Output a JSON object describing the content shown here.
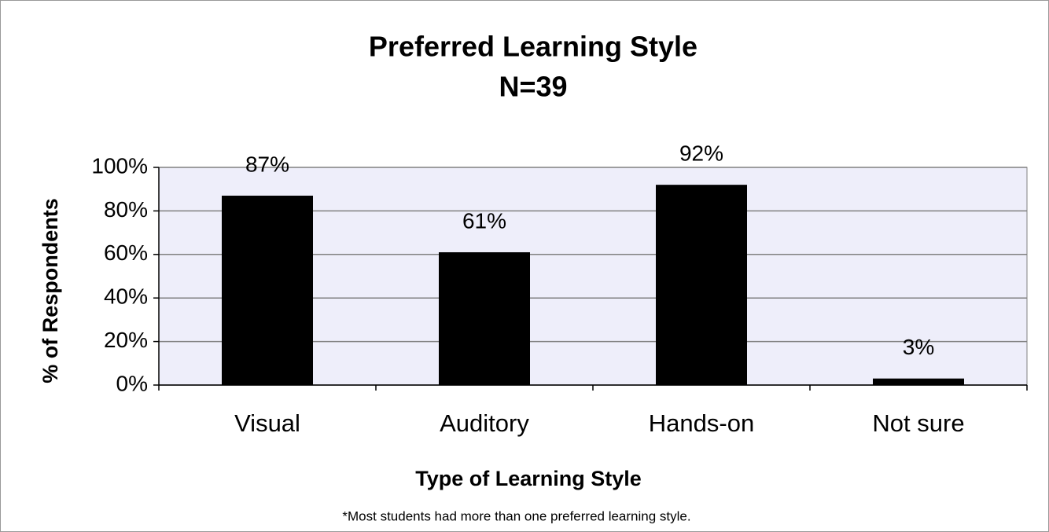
{
  "chart_data": {
    "type": "bar",
    "title": "Preferred Learning Style",
    "subtitle": "N=39",
    "x_label": "Type of Learning Style",
    "y_label": "% of Respondents",
    "annotation": "*Most students had more than one preferred learning style.",
    "categories": [
      "Visual",
      "Auditory",
      "Hands-on",
      "Not sure"
    ],
    "values": [
      87,
      61,
      92,
      3
    ],
    "value_labels": [
      "87%",
      "61%",
      "92%",
      "3%"
    ],
    "color": "#000000",
    "plot_background": "#eeeefa",
    "ylim": [
      0,
      100
    ],
    "yticks": [
      {
        "value": 0,
        "label": "0%"
      },
      {
        "value": 20,
        "label": "20%"
      },
      {
        "value": 40,
        "label": "40%"
      },
      {
        "value": 60,
        "label": "60%"
      },
      {
        "value": 80,
        "label": "80%"
      },
      {
        "value": 100,
        "label": "100%"
      }
    ],
    "grid": true
  }
}
